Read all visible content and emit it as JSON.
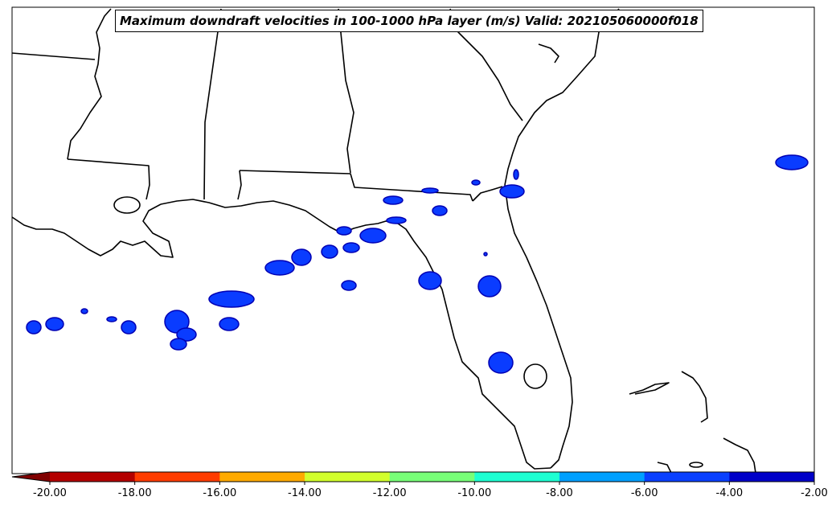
{
  "title": "Maximum downdraft velocities in 100-1000 hPa layer (m/s) Valid: 202105060000f018",
  "colorbar": {
    "ticks": [
      "-20.00",
      "-18.00",
      "-16.00",
      "-14.00",
      "-12.00",
      "-10.00",
      "-8.00",
      "-6.00",
      "-4.00",
      "-2.00"
    ],
    "extend": "min",
    "colors": [
      "#b40000",
      "#ff3c00",
      "#ffaa00",
      "#d2ff2d",
      "#78ff78",
      "#1effd2",
      "#00a0ff",
      "#0a40ff",
      "#0000c8"
    ],
    "extend_color": "#800000"
  },
  "map": {
    "region": "Southeastern United States / Gulf of Mexico",
    "coastline_color": "#000000",
    "field_color": "#0a3cff",
    "field_core_color": "#0000b4"
  }
}
